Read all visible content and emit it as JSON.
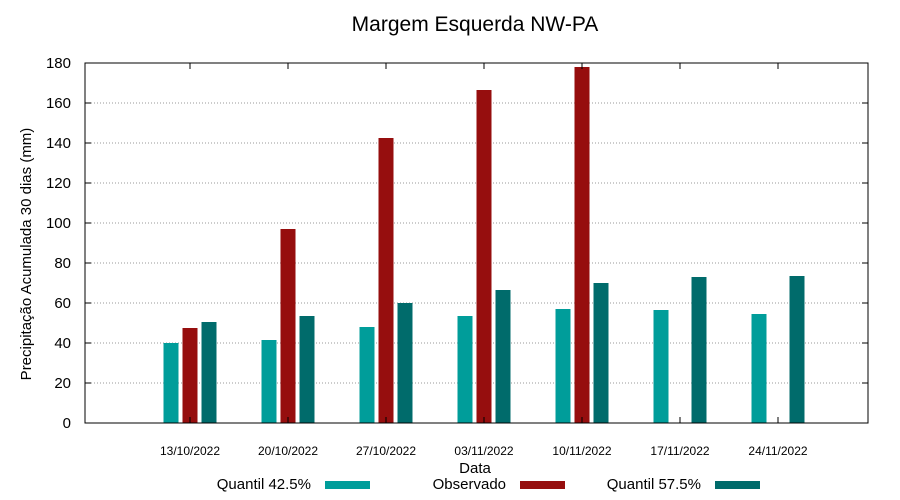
{
  "chart_data": {
    "type": "bar",
    "title": "Margem Esquerda NW-PA",
    "xlabel": "Data",
    "ylabel": "Precipitação Acumulada 30 dias (mm)",
    "ylim": [
      0,
      180
    ],
    "yticks": [
      "0",
      "20",
      "40",
      "60",
      "80",
      "100",
      "120",
      "140",
      "160",
      "180"
    ],
    "grid": true,
    "legend_position": "bottom",
    "categories": [
      "13/10/2022",
      "20/10/2022",
      "27/10/2022",
      "03/11/2022",
      "10/11/2022",
      "17/11/2022",
      "24/11/2022"
    ],
    "series": [
      {
        "name": "Quantil 42.5%",
        "color": "#009d9a",
        "values": [
          40,
          41.5,
          48,
          53.5,
          57,
          56.5,
          54.5
        ]
      },
      {
        "name": "Observado",
        "color": "#960e0e",
        "values": [
          47.5,
          97,
          142.5,
          166.5,
          178,
          null,
          null
        ]
      },
      {
        "name": "Quantil 57.5%",
        "color": "#006b6b",
        "values": [
          50.5,
          53.5,
          60,
          66.5,
          70,
          73,
          73.5
        ]
      }
    ]
  }
}
